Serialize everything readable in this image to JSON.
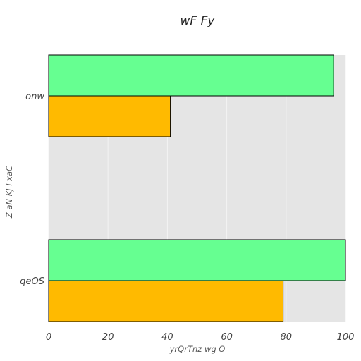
{
  "chart_data": {
    "type": "bar",
    "orientation": "horizontal",
    "title": "wF Fy",
    "xlabel": "yrQrTnz wg  O",
    "ylabel": "Z aN  KJ l xaC",
    "categories": [
      "onw",
      "qeOS"
    ],
    "series": [
      {
        "values": [
          96,
          100
        ],
        "color": "#66ff91"
      },
      {
        "values": [
          41,
          79
        ],
        "color": "#ffba00"
      }
    ],
    "xlim": [
      0,
      100
    ],
    "xticks": [
      "0",
      "20",
      "40",
      "60",
      "80",
      "100"
    ],
    "grid": true,
    "background": "#e5e5e5",
    "legend": "none"
  }
}
